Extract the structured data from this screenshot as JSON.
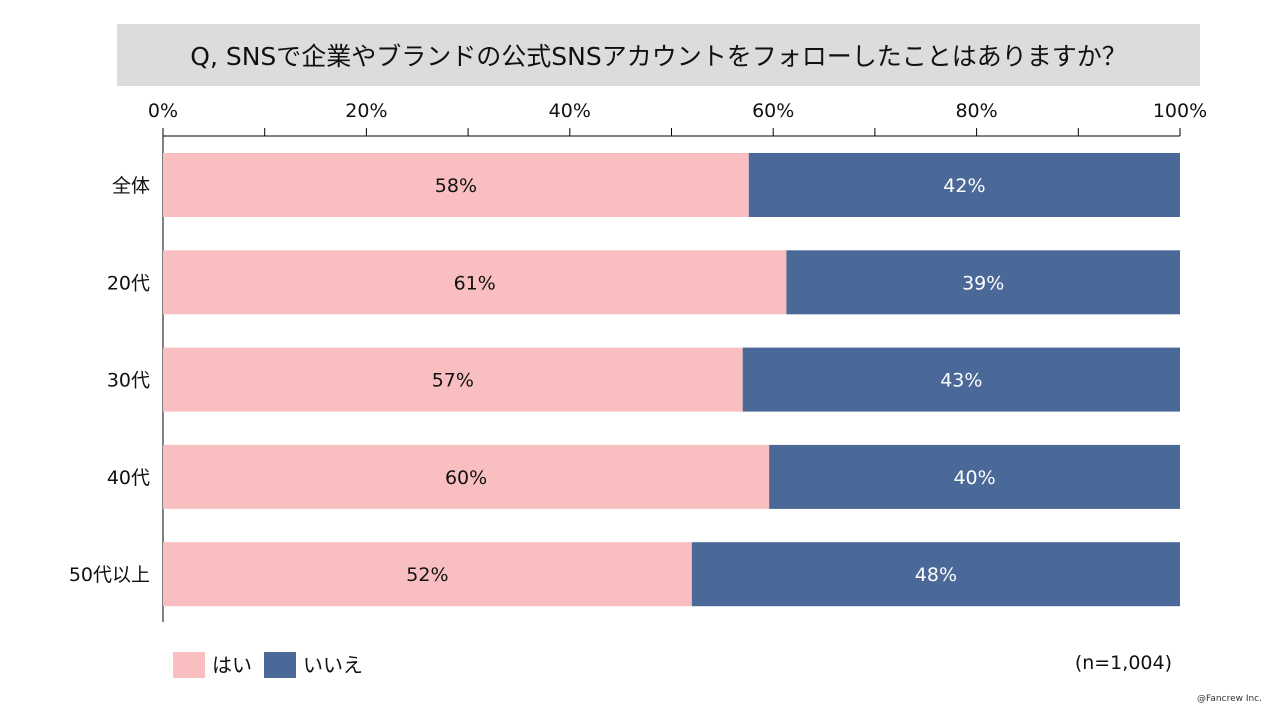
{
  "chart_data": {
    "type": "bar",
    "orientation": "horizontal-stacked-100",
    "title": "Q, SNSで企業やブランドの公式SNSアカウントをフォローしたことはありますか？",
    "categories": [
      "全体",
      "20代",
      "30代",
      "40代",
      "50代以上"
    ],
    "series": [
      {
        "name": "はい",
        "color": "#f9bfc0",
        "values": [
          57.6,
          61.3,
          57.0,
          59.6,
          52.0
        ],
        "labels": [
          "58%",
          "61%",
          "57%",
          "60%",
          "52%"
        ]
      },
      {
        "name": "いいえ",
        "color": "#4a6898",
        "values": [
          42.4,
          38.7,
          43.0,
          40.4,
          48.0
        ],
        "labels": [
          "42%",
          "39%",
          "43%",
          "40%",
          "48%"
        ]
      }
    ],
    "xlim": [
      0,
      100
    ],
    "xticks": [
      "0%",
      "20%",
      "40%",
      "60%",
      "80%",
      "100%"
    ],
    "legend": "bottom-left",
    "note": "(n=1,004)",
    "credit": "@Fancrew Inc."
  }
}
